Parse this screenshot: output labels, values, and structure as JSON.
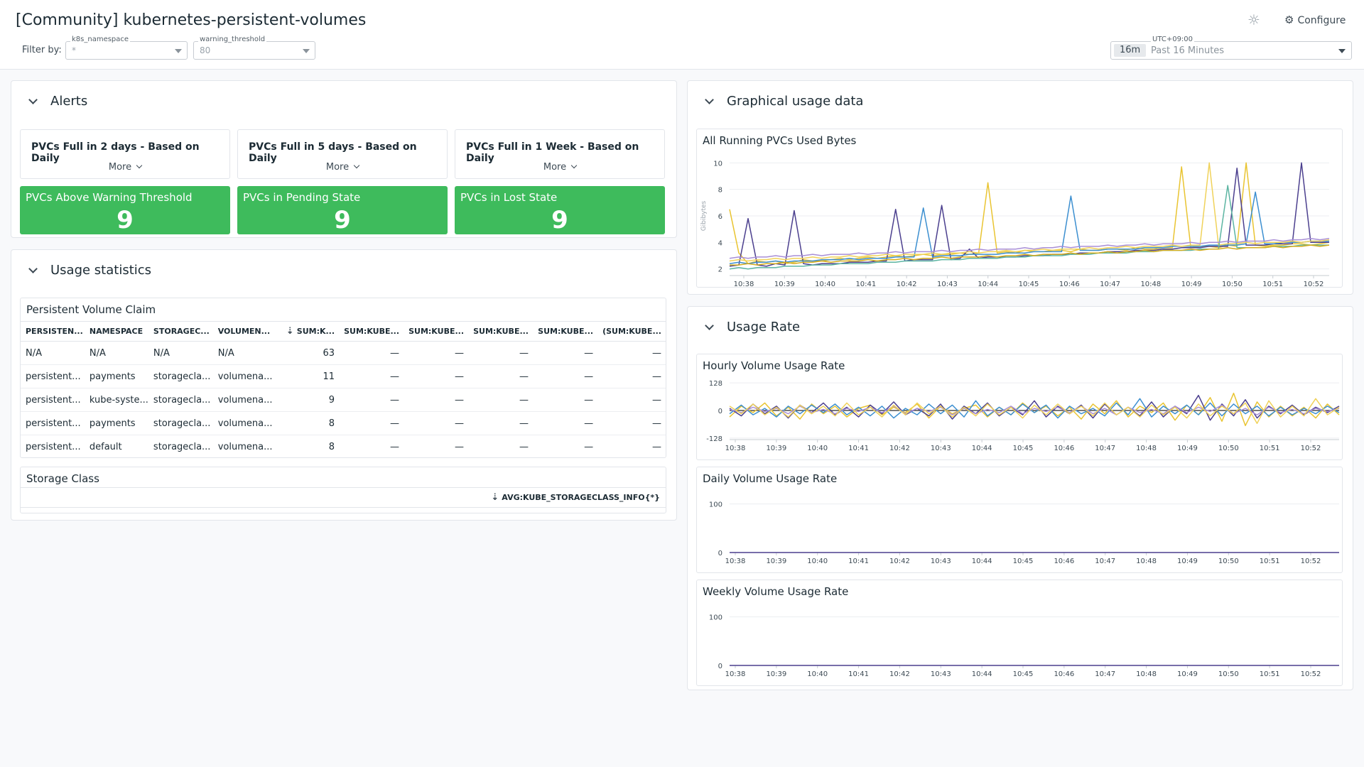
{
  "header": {
    "title": "[Community] kubernetes-persistent-volumes",
    "filter_label": "Filter by:",
    "vars": [
      {
        "name": "k8s_namespace",
        "value": "*"
      },
      {
        "name": "warning_threshold",
        "value": "80"
      }
    ],
    "configure_label": "Configure",
    "icons": {
      "configure": "gear-icon",
      "theme": "sun-icon"
    },
    "time": {
      "timezone": "UTC+09:00",
      "chip": "16m",
      "range": "Past 16 Minutes"
    }
  },
  "alerts": {
    "title": "Alerts",
    "cards": [
      {
        "title": "PVCs Full in 2 days - Based on Daily",
        "more": "More"
      },
      {
        "title": "PVCs Full in 5 days - Based on Daily",
        "more": "More"
      },
      {
        "title": "PVCs Full in 1 Week - Based on Daily",
        "more": "More"
      }
    ],
    "status": [
      {
        "title": "PVCs Above Warning Threshold",
        "value": "9"
      },
      {
        "title": "PVCs in Pending State",
        "value": "9"
      },
      {
        "title": "PVCs in Lost State",
        "value": "9"
      }
    ],
    "status_color": "#3ebb5c"
  },
  "usage_stats": {
    "title": "Usage statistics",
    "pvc_table": {
      "title": "Persistent Volume Claim",
      "columns": [
        "PERSISTEN...",
        "NAMESPACE",
        "STORAGEC...",
        "VOLUMEN...",
        "SUM:K...",
        "SUM:KUBE...",
        "SUM:KUBE...",
        "SUM:KUBE...",
        "SUM:KUBE...",
        "(SUM:KUBE..."
      ],
      "rows": [
        [
          "N/A",
          "N/A",
          "N/A",
          "N/A",
          "63",
          "—",
          "—",
          "—",
          "—",
          "—"
        ],
        [
          "persistent...",
          "payments",
          "storagecla...",
          "volumena...",
          "11",
          "—",
          "—",
          "—",
          "—",
          "—"
        ],
        [
          "persistent...",
          "kube-syste...",
          "storagecla...",
          "volumena...",
          "9",
          "—",
          "—",
          "—",
          "—",
          "—"
        ],
        [
          "persistent...",
          "payments",
          "storagecla...",
          "volumena...",
          "8",
          "—",
          "—",
          "—",
          "—",
          "—"
        ],
        [
          "persistent...",
          "default",
          "storagecla...",
          "volumena...",
          "8",
          "—",
          "—",
          "—",
          "—",
          "—"
        ]
      ]
    },
    "storage_class": {
      "title": "Storage Class",
      "column": "AVG:KUBE_STORAGECLASS_INFO{*}"
    }
  },
  "graphical": {
    "title": "Graphical usage data",
    "widget_title": "All Running PVCs Used Bytes",
    "ylabel": "Gibibytes"
  },
  "usage_rate": {
    "title": "Usage Rate",
    "hourly_title": "Hourly Volume Usage Rate",
    "daily_title": "Daily Volume Usage Rate",
    "weekly_title": "Weekly Volume Usage Rate"
  },
  "chart_data": [
    {
      "type": "line",
      "title": "All Running PVCs Used Bytes",
      "ylabel": "Gibibytes",
      "ylim": [
        1.5,
        10.5
      ],
      "yticks": [
        2,
        4,
        6,
        8,
        10
      ],
      "x_ticks": [
        "10:38",
        "10:39",
        "10:40",
        "10:41",
        "10:42",
        "10:43",
        "10:44",
        "10:45",
        "10:46",
        "10:47",
        "10:48",
        "10:49",
        "10:50",
        "10:51",
        "10:52"
      ],
      "colors": [
        "#e9c431",
        "#4b3f8e",
        "#3c8fd0",
        "#f0d25a",
        "#5cb5a2",
        "#a98fd6",
        "#d4ac1d"
      ],
      "series": [
        {
          "values": [
            6.5,
            3.2,
            2.4,
            2.6,
            2.5,
            2.6,
            2.4,
            2.5,
            2.7,
            2.6,
            2.6,
            2.7,
            2.8,
            2.7,
            2.8,
            2.9,
            2.8,
            2.9,
            3.0,
            2.9,
            3.0,
            3.1,
            3.0,
            3.1,
            3.1,
            3.2,
            3.1,
            3.2,
            8.5,
            3.2,
            3.3,
            3.2,
            3.4,
            3.3,
            3.3,
            3.4,
            3.4,
            3.3,
            3.5,
            3.4,
            3.4,
            3.5,
            3.5,
            3.4,
            3.6,
            3.5,
            3.5,
            3.6,
            3.6,
            9.7,
            3.6,
            3.7,
            3.7,
            3.6,
            3.8,
            3.7,
            10.0,
            3.8,
            3.7,
            3.8,
            3.8,
            3.9,
            3.9,
            3.8,
            3.9,
            4.0
          ]
        },
        {
          "values": [
            2.2,
            2.3,
            5.8,
            2.3,
            2.2,
            2.4,
            2.3,
            6.4,
            2.4,
            2.3,
            2.4,
            2.4,
            2.4,
            2.5,
            2.5,
            2.5,
            2.6,
            2.6,
            6.5,
            2.6,
            2.7,
            2.7,
            2.7,
            6.8,
            2.7,
            2.8,
            3.5,
            2.8,
            2.9,
            2.9,
            2.9,
            2.9,
            3.0,
            3.0,
            3.0,
            3.1,
            3.1,
            3.1,
            3.2,
            3.2,
            3.2,
            3.3,
            3.3,
            3.3,
            3.4,
            3.4,
            3.4,
            3.5,
            3.5,
            3.6,
            3.6,
            3.6,
            3.7,
            3.7,
            3.7,
            9.6,
            3.8,
            3.8,
            3.8,
            3.9,
            3.9,
            3.9,
            10.0,
            4.0,
            4.0,
            4.0
          ]
        },
        {
          "values": [
            2.4,
            2.5,
            2.4,
            2.5,
            2.5,
            2.6,
            2.5,
            2.6,
            2.6,
            2.6,
            2.7,
            2.7,
            2.7,
            2.8,
            2.7,
            2.8,
            2.8,
            2.8,
            2.9,
            2.9,
            2.9,
            6.6,
            2.9,
            3.0,
            3.0,
            3.0,
            3.1,
            3.1,
            3.1,
            3.1,
            3.2,
            3.2,
            3.2,
            3.3,
            3.3,
            3.3,
            3.3,
            7.5,
            3.4,
            3.4,
            3.4,
            3.5,
            3.5,
            3.5,
            3.5,
            3.6,
            3.6,
            3.6,
            3.7,
            3.7,
            3.7,
            3.7,
            3.8,
            3.8,
            3.8,
            3.8,
            3.9,
            7.8,
            3.9,
            3.9,
            4.0,
            4.0,
            4.0,
            4.1,
            4.1,
            4.1
          ]
        },
        {
          "values": [
            2.6,
            2.7,
            2.6,
            2.7,
            2.7,
            2.8,
            2.7,
            2.8,
            2.8,
            2.9,
            2.8,
            2.9,
            2.9,
            3.0,
            2.9,
            3.0,
            3.0,
            3.1,
            3.0,
            3.1,
            3.1,
            3.1,
            3.2,
            3.1,
            3.2,
            3.2,
            3.3,
            3.2,
            3.3,
            3.3,
            3.4,
            3.3,
            3.4,
            3.4,
            3.5,
            3.4,
            3.5,
            3.5,
            3.5,
            3.6,
            3.5,
            3.6,
            3.6,
            3.7,
            3.6,
            3.7,
            3.7,
            3.7,
            3.8,
            3.7,
            3.8,
            3.8,
            10.0,
            3.8,
            3.9,
            3.9,
            4.0,
            3.9,
            4.0,
            4.0,
            4.0,
            4.1,
            4.0,
            4.1,
            4.1,
            4.2
          ]
        },
        {
          "values": [
            2.0,
            2.1,
            2.0,
            2.1,
            2.1,
            2.1,
            2.2,
            2.2,
            2.2,
            2.3,
            2.3,
            2.3,
            2.4,
            2.4,
            2.4,
            2.4,
            2.5,
            2.5,
            2.5,
            2.6,
            2.6,
            2.6,
            2.6,
            2.7,
            2.7,
            2.7,
            2.8,
            2.8,
            2.8,
            2.8,
            2.9,
            2.9,
            2.9,
            3.0,
            3.0,
            3.0,
            3.0,
            3.1,
            3.1,
            3.1,
            3.2,
            3.2,
            3.2,
            3.2,
            3.3,
            3.3,
            3.3,
            3.4,
            3.4,
            3.4,
            3.4,
            3.5,
            3.5,
            3.5,
            8.3,
            3.6,
            3.6,
            3.6,
            3.6,
            3.7,
            3.7,
            3.7,
            3.8,
            3.8,
            3.8,
            3.8
          ]
        },
        {
          "values": [
            2.8,
            2.9,
            2.8,
            2.9,
            2.9,
            3.0,
            2.9,
            3.0,
            3.0,
            3.1,
            3.0,
            3.1,
            3.1,
            3.1,
            3.2,
            3.1,
            3.2,
            3.2,
            3.3,
            3.2,
            3.3,
            3.3,
            3.3,
            3.4,
            3.3,
            3.4,
            3.4,
            3.5,
            3.4,
            3.5,
            3.5,
            3.5,
            3.6,
            3.5,
            3.6,
            3.6,
            3.7,
            3.6,
            3.7,
            3.7,
            3.7,
            3.8,
            3.7,
            3.8,
            3.8,
            3.9,
            3.8,
            3.9,
            3.9,
            3.9,
            4.0,
            3.9,
            4.0,
            4.0,
            4.1,
            4.0,
            4.1,
            4.1,
            4.1,
            4.2,
            4.1,
            4.2,
            4.2,
            4.3,
            4.2,
            4.3
          ]
        },
        {
          "values": [
            2.3,
            2.3,
            2.4,
            2.3,
            2.4,
            2.4,
            2.5,
            2.4,
            2.5,
            2.5,
            2.6,
            2.5,
            2.6,
            2.6,
            2.6,
            2.7,
            2.6,
            2.7,
            2.7,
            2.8,
            2.7,
            2.8,
            2.8,
            2.9,
            2.8,
            2.9,
            2.9,
            2.9,
            3.0,
            2.9,
            3.0,
            3.0,
            3.1,
            3.0,
            3.1,
            3.1,
            3.1,
            3.2,
            3.1,
            3.2,
            3.2,
            3.3,
            3.2,
            3.3,
            3.3,
            3.4,
            3.3,
            3.4,
            3.4,
            3.4,
            3.5,
            3.4,
            3.5,
            3.5,
            3.6,
            3.5,
            3.6,
            3.6,
            3.6,
            3.7,
            3.6,
            3.7,
            3.7,
            3.8,
            3.7,
            3.8
          ]
        }
      ]
    },
    {
      "type": "line",
      "title": "Hourly Volume Usage Rate",
      "ylim": [
        -135,
        135
      ],
      "yticks": [
        128,
        0,
        -128
      ],
      "x_ticks": [
        "10:38",
        "10:39",
        "10:40",
        "10:41",
        "10:42",
        "10:43",
        "10:44",
        "10:45",
        "10:46",
        "10:47",
        "10:48",
        "10:49",
        "10:50",
        "10:51",
        "10:52"
      ],
      "colors": [
        "#e9c431",
        "#4b3f8e",
        "#3c8fd0",
        "#a98fd6",
        "#f0d25a"
      ],
      "series": [
        {
          "values": [
            -30,
            20,
            -10,
            35,
            -25,
            15,
            -40,
            30,
            -15,
            20,
            -30,
            10,
            25,
            -20,
            15,
            -10,
            30,
            -35,
            20,
            -15,
            10,
            25,
            -30,
            15,
            -20,
            35,
            -10,
            20,
            -25,
            15,
            -40,
            30,
            -15,
            45,
            -30,
            20,
            -10,
            35,
            -45,
            25,
            -20,
            60,
            -50,
            80,
            -70,
            40,
            -30,
            20,
            -25,
            15,
            -35,
            30,
            -20
          ]
        },
        {
          "values": [
            10,
            -25,
            30,
            -15,
            20,
            -35,
            25,
            -10,
            35,
            -20,
            15,
            -30,
            25,
            -15,
            40,
            -20,
            10,
            -25,
            30,
            -40,
            20,
            -15,
            35,
            -25,
            15,
            -20,
            45,
            -30,
            20,
            -15,
            25,
            -35,
            30,
            -20,
            15,
            -25,
            40,
            -30,
            20,
            -15,
            70,
            -45,
            30,
            -25,
            50,
            -35,
            20,
            -15,
            25,
            -20,
            15,
            -10,
            20
          ]
        },
        {
          "values": [
            -15,
            25,
            -20,
            10,
            -30,
            20,
            -15,
            25,
            -10,
            30,
            -20,
            15,
            -25,
            20,
            -35,
            10,
            -20,
            30,
            -15,
            25,
            -30,
            45,
            -25,
            15,
            -20,
            30,
            -10,
            25,
            -35,
            20,
            -15,
            10,
            -25,
            35,
            -20,
            55,
            -30,
            20,
            -15,
            25,
            -20,
            35,
            -25,
            30,
            -15,
            20,
            -25,
            15,
            -20,
            10,
            -15,
            20,
            -10
          ]
        },
        {
          "values": [
            5,
            -10,
            15,
            -5,
            10,
            -15,
            20,
            -10,
            5,
            -15,
            10,
            -5,
            15,
            -10,
            20,
            -15,
            10,
            -5,
            15,
            -20,
            10,
            -15,
            5,
            -10,
            20,
            -15,
            10,
            -5,
            15,
            -10,
            20,
            -15,
            10,
            -20,
            15,
            -10,
            5,
            -15,
            20,
            -10,
            15,
            -5,
            25,
            -15,
            10,
            -20,
            15,
            -10,
            5,
            -15,
            10,
            -5,
            10
          ]
        },
        {
          "values": [
            20,
            -15,
            30,
            -20,
            15,
            -30,
            25,
            -15,
            20,
            -25,
            35,
            -20,
            15,
            -30,
            25,
            -20,
            35,
            -15,
            20,
            -30,
            15,
            -25,
            30,
            -20,
            15,
            -35,
            25,
            -20,
            30,
            -15,
            20,
            -25,
            35,
            -20,
            15,
            -30,
            25,
            -20,
            15,
            -35,
            30,
            -25,
            20,
            -15,
            35,
            -60,
            45,
            -30,
            20,
            -25,
            55,
            -20,
            15
          ]
        }
      ]
    },
    {
      "type": "line",
      "title": "Daily Volume Usage Rate",
      "ylim": [
        0,
        120
      ],
      "yticks": [
        100,
        0
      ],
      "x_ticks": [
        "10:38",
        "10:39",
        "10:40",
        "10:41",
        "10:42",
        "10:43",
        "10:44",
        "10:45",
        "10:46",
        "10:47",
        "10:48",
        "10:49",
        "10:50",
        "10:51",
        "10:52"
      ],
      "series": [
        {
          "values": [
            0,
            0
          ]
        }
      ]
    },
    {
      "type": "line",
      "title": "Weekly Volume Usage Rate",
      "ylim": [
        0,
        120
      ],
      "yticks": [
        100,
        0
      ],
      "x_ticks": [
        "10:38",
        "10:39",
        "10:40",
        "10:41",
        "10:42",
        "10:43",
        "10:44",
        "10:45",
        "10:46",
        "10:47",
        "10:48",
        "10:49",
        "10:50",
        "10:51",
        "10:52"
      ],
      "series": [
        {
          "values": [
            0,
            0
          ]
        }
      ]
    }
  ]
}
